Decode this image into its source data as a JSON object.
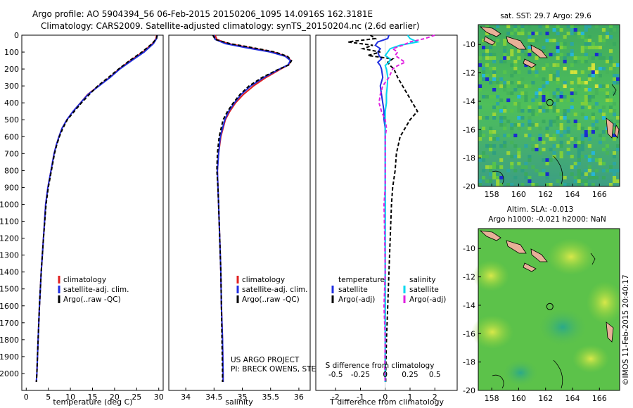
{
  "header": {
    "title_line1": "Argo profile: AO 5904394_56 06-Feb-2015 20150206_1095 14.0916S 162.3181E",
    "title_line2": "Climatology: CARS2009. Satellite-adjusted climatology: synTS_20150204.nc (2.6d earlier)"
  },
  "colors": {
    "climatology": "#e02020",
    "satellite": "#1f2ee0",
    "argo": "#000000",
    "salinity_sat": "#00d8f0",
    "salinity_argo": "#e020e0"
  },
  "chart_data": [
    {
      "type": "line",
      "name": "temperature",
      "xlabel": "temperature (deg C)",
      "ylabel": "",
      "xlim": [
        -1,
        31
      ],
      "ylim": [
        2100,
        0
      ],
      "xticks": [
        "0",
        "5",
        "10",
        "15",
        "20",
        "25",
        "30"
      ],
      "yticks": [
        "0",
        "100",
        "200",
        "300",
        "400",
        "500",
        "600",
        "700",
        "800",
        "900",
        "1000",
        "1100",
        "1200",
        "1300",
        "1400",
        "1500",
        "1600",
        "1700",
        "1800",
        "1900",
        "2000"
      ],
      "depth": [
        0,
        20,
        50,
        100,
        150,
        200,
        250,
        300,
        350,
        400,
        450,
        500,
        550,
        600,
        650,
        700,
        800,
        900,
        1000,
        1200,
        1400,
        1600,
        1800,
        2000,
        2050
      ],
      "series": [
        {
          "name": "climatology",
          "values": [
            29.5,
            29.4,
            28.6,
            26.4,
            23.6,
            21.0,
            18.9,
            16.4,
            13.9,
            12.3,
            10.6,
            9.2,
            8.1,
            7.4,
            6.8,
            6.3,
            5.6,
            4.9,
            4.4,
            3.9,
            3.4,
            3.0,
            2.7,
            2.4,
            2.3
          ]
        },
        {
          "name": "satellite-adj. clim.",
          "values": [
            29.7,
            29.5,
            28.8,
            26.7,
            23.9,
            21.2,
            19.0,
            16.5,
            14.0,
            12.3,
            10.6,
            9.2,
            8.1,
            7.4,
            6.8,
            6.3,
            5.6,
            4.9,
            4.4,
            3.9,
            3.4,
            3.0,
            2.7,
            2.4,
            2.3
          ]
        },
        {
          "name": "Argo(..raw -QC)",
          "values": [
            29.6,
            29.5,
            28.5,
            26.2,
            23.4,
            20.9,
            18.6,
            16.2,
            14.3,
            12.5,
            10.9,
            9.3,
            8.3,
            7.5,
            6.9,
            6.4,
            5.7,
            5.0,
            4.5,
            3.9,
            3.4,
            3.0,
            2.7,
            2.4,
            2.3
          ]
        }
      ],
      "legend": [
        "climatology",
        "satellite-adj. clim.",
        "Argo(..raw -QC)"
      ]
    },
    {
      "type": "line",
      "name": "salinity",
      "xlabel": "salinity",
      "xlim": [
        33.7,
        36.2
      ],
      "ylim": [
        2100,
        0
      ],
      "xticks": [
        "34",
        "34.5",
        "35",
        "35.5",
        "36"
      ],
      "depth": [
        0,
        25,
        50,
        75,
        100,
        125,
        150,
        175,
        200,
        250,
        300,
        350,
        400,
        450,
        500,
        600,
        700,
        800,
        900,
        1000,
        1200,
        1400,
        1600,
        1800,
        2000,
        2050
      ],
      "series": [
        {
          "name": "climatology",
          "values": [
            34.52,
            34.55,
            34.75,
            35.15,
            35.55,
            35.78,
            35.86,
            35.82,
            35.68,
            35.42,
            35.2,
            35.02,
            34.88,
            34.78,
            34.7,
            34.62,
            34.58,
            34.56,
            34.57,
            34.58,
            34.6,
            34.62,
            34.63,
            34.65,
            34.66,
            34.66
          ]
        },
        {
          "name": "satellite-adj. clim.",
          "values": [
            34.5,
            34.52,
            34.7,
            35.08,
            35.5,
            35.76,
            35.85,
            35.81,
            35.66,
            35.38,
            35.15,
            34.98,
            34.86,
            34.76,
            34.69,
            34.61,
            34.58,
            34.56,
            34.57,
            34.58,
            34.6,
            34.62,
            34.63,
            34.65,
            34.66,
            34.66
          ]
        },
        {
          "name": "Argo(..raw -QC)",
          "values": [
            34.48,
            34.52,
            34.78,
            35.2,
            35.58,
            35.8,
            35.87,
            35.83,
            35.65,
            35.35,
            35.12,
            34.96,
            34.84,
            34.74,
            34.66,
            34.59,
            34.56,
            34.55,
            34.57,
            34.58,
            34.6,
            34.62,
            34.63,
            34.64,
            34.65,
            34.65
          ]
        }
      ],
      "legend": [
        "climatology",
        "satellite-adj. clim.",
        "Argo(..raw -QC)"
      ],
      "annotation": [
        "US ARGO PROJECT",
        "PI: BRECK OWENS, STEVE JAYNE, P.E. ROBBINS"
      ]
    },
    {
      "type": "line",
      "name": "difference",
      "xlabel": "T difference from climatology",
      "xlabel_top": "S difference from climatology",
      "xlim": [
        -2.8,
        2.9
      ],
      "ylim": [
        2100,
        0
      ],
      "xticks": [
        "-2",
        "-1",
        "0",
        "1",
        "2"
      ],
      "xticks_top": [
        "-0.5",
        "-0.25",
        "0",
        "0.25",
        "0.5"
      ],
      "depth": [
        0,
        20,
        40,
        60,
        80,
        100,
        120,
        140,
        160,
        180,
        200,
        250,
        300,
        350,
        400,
        450,
        500,
        550,
        600,
        700,
        800,
        900,
        1000,
        1200,
        1400,
        1600,
        1800,
        2000,
        2050
      ],
      "series": [
        {
          "name": "temperature satellite",
          "values": [
            0.15,
            0.1,
            -0.3,
            -0.4,
            -0.2,
            -0.3,
            -0.25,
            -0.15,
            -0.3,
            -0.2,
            -0.15,
            -0.1,
            -0.2,
            -0.15,
            -0.1,
            -0.05,
            -0.05,
            0,
            0,
            0,
            0,
            0,
            0,
            0,
            0,
            0,
            0,
            0,
            0
          ]
        },
        {
          "name": "temperature Argo(-adj)",
          "values": [
            -0.6,
            -0.4,
            -1.5,
            -0.5,
            -0.9,
            -0.2,
            -0.7,
            0.3,
            0.1,
            0.2,
            0.35,
            0.5,
            0.7,
            0.9,
            1.1,
            1.3,
            1.0,
            0.8,
            0.6,
            0.45,
            0.4,
            0.3,
            0.25,
            0.2,
            0.15,
            0.1,
            0.05,
            0.02,
            0.02
          ]
        },
        {
          "name": "salinity satellite",
          "values": [
            0.9,
            1.0,
            1.3,
            0.6,
            0.2,
            0.1,
            0.0,
            0.2,
            0.15,
            0.0,
            0.05,
            0.1,
            0.08,
            0.05,
            0.05,
            0.0,
            0.0,
            0.0,
            0.0,
            0.0,
            0.0,
            0.0,
            0.0,
            0.0,
            0.0,
            0.0,
            0.0,
            0.0,
            0.0
          ]
        },
        {
          "name": "salinity Argo(-adj)",
          "values": [
            2.0,
            1.6,
            1.0,
            0.7,
            0.3,
            0.5,
            0.4,
            0.6,
            0.8,
            0.5,
            0.3,
            0.15,
            -0.1,
            -0.2,
            -0.25,
            -0.15,
            0.0,
            0.05,
            0.0,
            0.0,
            0.0,
            0.0,
            -0.05,
            -0.02,
            0.0,
            -0.05,
            0.0,
            -0.02,
            0.0
          ]
        }
      ],
      "legend_left_title": "temperature",
      "legend_right_title": "salinity",
      "legend_left": [
        "satellite",
        "Argo(-adj)"
      ],
      "legend_right": [
        "satellite",
        "Argo(-adj)"
      ]
    },
    {
      "type": "heatmap",
      "name": "sst_map",
      "title": "sat. SST: 29.7 Argo: 29.6",
      "xlim": [
        157,
        167.5
      ],
      "ylim": [
        -20,
        -8.6
      ],
      "xticks": [
        "158",
        "160",
        "162",
        "164",
        "166"
      ],
      "yticks": [
        "-10",
        "-12",
        "-14",
        "-16",
        "-18",
        "-20"
      ],
      "marker": {
        "lon": 162.3181,
        "lat": -14.0916
      }
    },
    {
      "type": "heatmap",
      "name": "sla_map",
      "title_line1": "Altim. SLA: -0.013",
      "title_line2": "Argo h1000: -0.021 h2000: NaN",
      "xlim": [
        157,
        167.5
      ],
      "ylim": [
        -20,
        -8.6
      ],
      "xticks": [
        "158",
        "160",
        "162",
        "164",
        "166"
      ],
      "yticks": [
        "-10",
        "-12",
        "-14",
        "-16",
        "-18",
        "-20"
      ],
      "marker": {
        "lon": 162.3181,
        "lat": -14.0916
      }
    }
  ],
  "footer": {
    "imos_stamp": "©IMOS 11-Feb-2015 20:40:17"
  }
}
